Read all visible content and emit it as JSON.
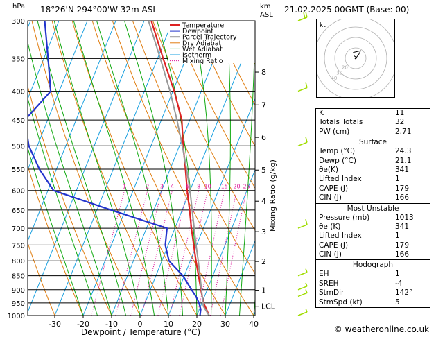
{
  "header": {
    "hpa_label": "hPa",
    "location": "18°26'N  294°00'W  32m  ASL",
    "km_label": "km",
    "asl_label": "ASL",
    "datetime": "21.02.2025  00GMT  (Base: 00)"
  },
  "colors": {
    "temperature": "#dd2222",
    "dewpoint": "#2233cc",
    "parcel": "#999999",
    "dry_adiabat": "#e07d10",
    "wet_adiabat": "#11aa11",
    "isotherm": "#1aa0e0",
    "mixing_ratio": "#dd1199",
    "wind": "#a0dd00"
  },
  "chart_data": {
    "type": "line",
    "title": "",
    "xlabel": "Dewpoint / Temperature (°C)",
    "ylabel": "",
    "right_label": "Mixing Ratio (g/kg)",
    "pressure_ticks": [
      300,
      350,
      400,
      450,
      500,
      550,
      600,
      650,
      700,
      750,
      800,
      850,
      900,
      950,
      1000
    ],
    "temp_ticks": [
      -30,
      -20,
      -10,
      0,
      10,
      20,
      30,
      40
    ],
    "xlim": [
      -40,
      40
    ],
    "ylim": [
      1000,
      300
    ],
    "km_ticks": [
      {
        "label": "8",
        "p": 370
      },
      {
        "label": "7",
        "p": 423
      },
      {
        "label": "6",
        "p": 483
      },
      {
        "label": "5",
        "p": 552
      },
      {
        "label": "4",
        "p": 627
      },
      {
        "label": "3",
        "p": 710
      },
      {
        "label": "2",
        "p": 802
      },
      {
        "label": "1",
        "p": 902
      },
      {
        "label": "LCL",
        "p": 963
      }
    ],
    "mixing_ratio_labels": [
      "1",
      "2",
      "3",
      "4",
      "6",
      "8",
      "10",
      "15",
      "20",
      "25"
    ],
    "legend": [
      "Temperature",
      "Dewpoint",
      "Parcel Trajectory",
      "Dry Adiabat",
      "Wet Adiabat",
      "Isotherm",
      "Mixing Ratio"
    ],
    "series": [
      {
        "name": "Temperature",
        "points": [
          [
            1000,
            24.3
          ],
          [
            975,
            22.5
          ],
          [
            950,
            20.6
          ],
          [
            925,
            19.2
          ],
          [
            900,
            17.8
          ],
          [
            850,
            15.0
          ],
          [
            800,
            12.0
          ],
          [
            750,
            9.0
          ],
          [
            700,
            5.8
          ],
          [
            650,
            2.6
          ],
          [
            600,
            -1.0
          ],
          [
            550,
            -4.6
          ],
          [
            500,
            -8.7
          ],
          [
            450,
            -12.8
          ],
          [
            400,
            -19.5
          ],
          [
            350,
            -28.0
          ],
          [
            300,
            -37.5
          ]
        ]
      },
      {
        "name": "Dewpoint",
        "points": [
          [
            1000,
            21.1
          ],
          [
            975,
            20.5
          ],
          [
            950,
            19.0
          ],
          [
            925,
            17.0
          ],
          [
            900,
            14.5
          ],
          [
            850,
            9.5
          ],
          [
            800,
            2.5
          ],
          [
            750,
            -1.0
          ],
          [
            700,
            -2.8
          ],
          [
            650,
            -25.0
          ],
          [
            600,
            -48.0
          ],
          [
            550,
            -56.0
          ],
          [
            500,
            -63.0
          ],
          [
            450,
            -68.0
          ],
          [
            400,
            -63.0
          ],
          [
            350,
            -68.5
          ],
          [
            300,
            -75.0
          ]
        ]
      },
      {
        "name": "Parcel Trajectory",
        "points": [
          [
            1000,
            24.3
          ],
          [
            963,
            21.0
          ],
          [
            900,
            18.0
          ],
          [
            850,
            15.5
          ],
          [
            800,
            12.8
          ],
          [
            750,
            9.8
          ],
          [
            700,
            6.8
          ],
          [
            650,
            3.5
          ],
          [
            600,
            0.0
          ],
          [
            550,
            -4.2
          ],
          [
            500,
            -9.0
          ],
          [
            450,
            -14.5
          ],
          [
            400,
            -21.0
          ],
          [
            350,
            -29.0
          ],
          [
            300,
            -38.5
          ]
        ]
      }
    ]
  },
  "winds": [
    {
      "p": 300,
      "flags": "two-barb"
    },
    {
      "p": 400,
      "flags": "one-barb"
    },
    {
      "p": 500,
      "flags": "one-barb"
    },
    {
      "p": 700,
      "flags": "one-barb"
    },
    {
      "p": 850,
      "flags": "short"
    },
    {
      "p": 900,
      "flags": "short"
    },
    {
      "p": 925,
      "flags": "short"
    },
    {
      "p": 1000,
      "flags": "short"
    }
  ],
  "hodograph": {
    "label": "kt",
    "ring_labels": [
      "20",
      "30",
      "40"
    ],
    "points": [
      [
        -1.0,
        1.5
      ],
      [
        0.5,
        0.5
      ],
      [
        2.0,
        2.5
      ],
      [
        3.0,
        4.5
      ],
      [
        -1.5,
        3.5
      ]
    ]
  },
  "indices": [
    {
      "label": "K",
      "value": "11"
    },
    {
      "label": "Totals Totals",
      "value": "32"
    },
    {
      "label": "PW (cm)",
      "value": "2.71"
    }
  ],
  "surface": {
    "title": "Surface",
    "rows": [
      {
        "label": "Temp (°C)",
        "value": "24.3"
      },
      {
        "label": "Dewp (°C)",
        "value": "21.1"
      },
      {
        "label": "θe(K)",
        "value": "341"
      },
      {
        "label": "Lifted Index",
        "value": "1"
      },
      {
        "label": "CAPE (J)",
        "value": "179"
      },
      {
        "label": "CIN (J)",
        "value": "166"
      }
    ]
  },
  "unstable": {
    "title": "Most Unstable",
    "rows": [
      {
        "label": "Pressure (mb)",
        "value": "1013"
      },
      {
        "label": "θe (K)",
        "value": "341"
      },
      {
        "label": "Lifted Index",
        "value": "1"
      },
      {
        "label": "CAPE (J)",
        "value": "179"
      },
      {
        "label": "CIN (J)",
        "value": "166"
      }
    ]
  },
  "hodo_table": {
    "title": "Hodograph",
    "rows": [
      {
        "label": "EH",
        "value": "1"
      },
      {
        "label": "SREH",
        "value": "-4"
      },
      {
        "label": "StmDir",
        "value": "142°"
      },
      {
        "label": "StmSpd (kt)",
        "value": "5"
      }
    ]
  },
  "footer": "© weatheronline.co.uk"
}
